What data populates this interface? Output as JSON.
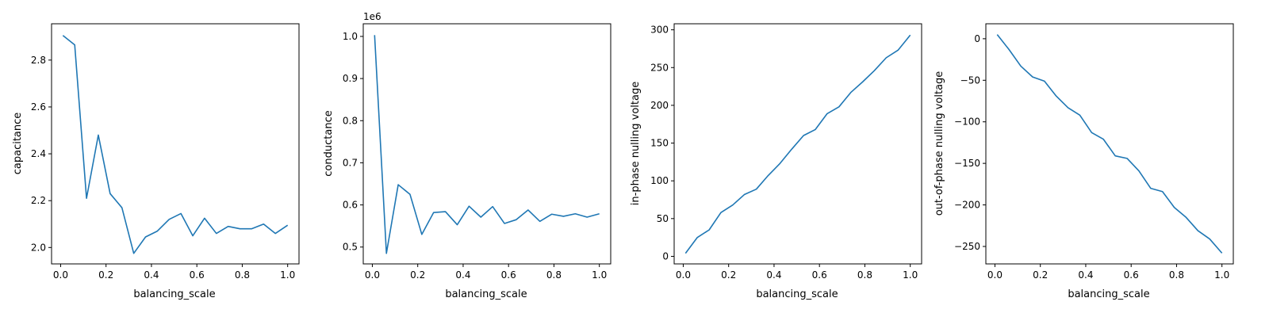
{
  "colors": {
    "line": "#1f77b4",
    "axes": "#000000",
    "background": "#ffffff"
  },
  "chart_data": [
    {
      "type": "line",
      "xlabel": "balancing_scale",
      "ylabel": "capacitance",
      "offset_text": "",
      "grid": false,
      "xlim": [
        -0.04,
        1.05
      ],
      "ylim": [
        1.93,
        2.955
      ],
      "xticks": [
        0.0,
        0.2,
        0.4,
        0.6,
        0.8,
        1.0
      ],
      "xtick_labels": [
        "0.0",
        "0.2",
        "0.4",
        "0.6",
        "0.8",
        "1.0"
      ],
      "yticks": [
        2.0,
        2.2,
        2.4,
        2.6,
        2.8
      ],
      "ytick_labels": [
        "2.0",
        "2.2",
        "2.4",
        "2.6",
        "2.8"
      ],
      "series": [
        {
          "x": [
            0.01,
            0.062,
            0.114,
            0.166,
            0.218,
            0.27,
            0.322,
            0.374,
            0.426,
            0.478,
            0.53,
            0.582,
            0.634,
            0.686,
            0.738,
            0.79,
            0.842,
            0.894,
            0.946,
            1.0
          ],
          "y": [
            2.905,
            2.865,
            2.21,
            2.48,
            2.23,
            2.17,
            1.975,
            2.045,
            2.07,
            2.12,
            2.145,
            2.05,
            2.125,
            2.06,
            2.09,
            2.08,
            2.08,
            2.1,
            2.06,
            2.095
          ]
        }
      ]
    },
    {
      "type": "line",
      "xlabel": "balancing_scale",
      "ylabel": "conductance",
      "offset_text": "1e6",
      "grid": false,
      "xlim": [
        -0.04,
        1.05
      ],
      "ylim": [
        0.46,
        1.03
      ],
      "xticks": [
        0.0,
        0.2,
        0.4,
        0.6,
        0.8,
        1.0
      ],
      "xtick_labels": [
        "0.0",
        "0.2",
        "0.4",
        "0.6",
        "0.8",
        "1.0"
      ],
      "yticks": [
        0.5,
        0.6,
        0.7,
        0.8,
        0.9,
        1.0
      ],
      "ytick_labels": [
        "0.5",
        "0.6",
        "0.7",
        "0.8",
        "0.9",
        "1.0"
      ],
      "series": [
        {
          "x": [
            0.01,
            0.062,
            0.114,
            0.166,
            0.218,
            0.27,
            0.322,
            0.374,
            0.426,
            0.478,
            0.53,
            0.582,
            0.634,
            0.686,
            0.738,
            0.79,
            0.842,
            0.894,
            0.946,
            1.0
          ],
          "y": [
            1.003,
            0.485,
            0.648,
            0.625,
            0.53,
            0.582,
            0.584,
            0.553,
            0.597,
            0.571,
            0.596,
            0.556,
            0.565,
            0.588,
            0.561,
            0.578,
            0.573,
            0.579,
            0.571,
            0.579
          ]
        }
      ]
    },
    {
      "type": "line",
      "xlabel": "balancing_scale",
      "ylabel": "in-phase nulling voltage",
      "offset_text": "",
      "grid": false,
      "xlim": [
        -0.04,
        1.05
      ],
      "ylim": [
        -10,
        308
      ],
      "xticks": [
        0.0,
        0.2,
        0.4,
        0.6,
        0.8,
        1.0
      ],
      "xtick_labels": [
        "0.0",
        "0.2",
        "0.4",
        "0.6",
        "0.8",
        "1.0"
      ],
      "yticks": [
        0,
        50,
        100,
        150,
        200,
        250,
        300
      ],
      "ytick_labels": [
        "0",
        "50",
        "100",
        "150",
        "200",
        "250",
        "300"
      ],
      "series": [
        {
          "x": [
            0.01,
            0.062,
            0.114,
            0.166,
            0.218,
            0.27,
            0.322,
            0.374,
            0.426,
            0.478,
            0.53,
            0.582,
            0.634,
            0.686,
            0.738,
            0.79,
            0.842,
            0.894,
            0.946,
            1.0
          ],
          "y": [
            4,
            25,
            35,
            58,
            68,
            82,
            89,
            107,
            123,
            142,
            160,
            168,
            189,
            198,
            217,
            231,
            246,
            263,
            273,
            293
          ]
        }
      ]
    },
    {
      "type": "line",
      "xlabel": "balancing_scale",
      "ylabel": "out-of-phase nulling voltage",
      "offset_text": "",
      "grid": false,
      "xlim": [
        -0.04,
        1.05
      ],
      "ylim": [
        -271,
        18
      ],
      "xticks": [
        0.0,
        0.2,
        0.4,
        0.6,
        0.8,
        1.0
      ],
      "xtick_labels": [
        "0.0",
        "0.2",
        "0.4",
        "0.6",
        "0.8",
        "1.0"
      ],
      "yticks": [
        -250,
        -200,
        -150,
        -100,
        -50,
        0
      ],
      "ytick_labels": [
        "−250",
        "−200",
        "−150",
        "−100",
        "−50",
        "0"
      ],
      "series": [
        {
          "x": [
            0.01,
            0.062,
            0.114,
            0.166,
            0.218,
            0.27,
            0.322,
            0.374,
            0.426,
            0.478,
            0.53,
            0.582,
            0.634,
            0.686,
            0.738,
            0.79,
            0.842,
            0.894,
            0.946,
            1.0
          ],
          "y": [
            5,
            -13,
            -33,
            -46,
            -51,
            -69,
            -83,
            -92,
            -113,
            -121,
            -141,
            -144,
            -159,
            -180,
            -184,
            -203,
            -215,
            -231,
            -241,
            -258
          ]
        }
      ]
    }
  ]
}
